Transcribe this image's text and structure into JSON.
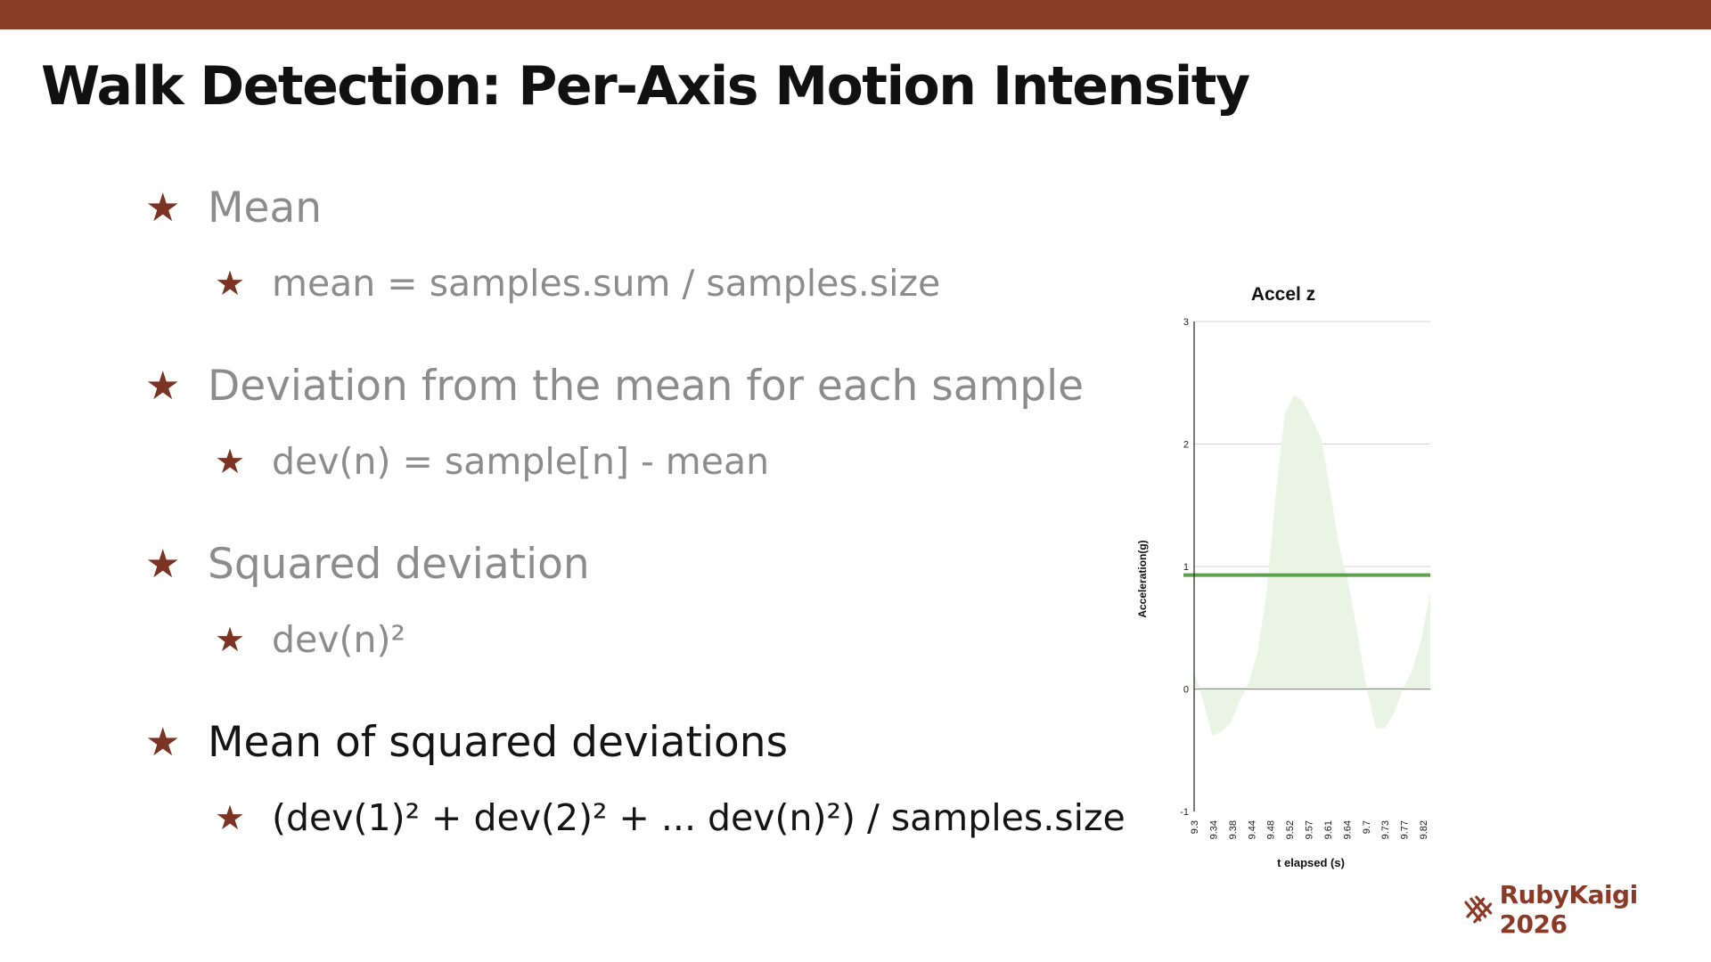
{
  "colors": {
    "top_bar": "#8b3a26",
    "star": "#7b3424",
    "text_dim": "#8c8c8c",
    "text_active": "#141414",
    "mean_line": "#5e9e4f",
    "area_fill": "#eaf4e5",
    "brand": "#8b3a26"
  },
  "slide": {
    "title": "Walk Detection: Per-Axis Motion Intensity",
    "bullets": [
      {
        "text": "Mean",
        "state": "dim",
        "sub": "mean = samples.sum / samples.size"
      },
      {
        "text": "Deviation from the mean for each sample",
        "state": "dim",
        "sub": "dev(n) = sample[n] - mean"
      },
      {
        "text": "Squared deviation",
        "state": "dim",
        "sub": "dev(n)²"
      },
      {
        "text": "Mean of squared deviations",
        "state": "active",
        "sub": "(dev(1)² + dev(2)² + ... dev(n)²) / samples.size"
      }
    ],
    "star_icon": "star-icon"
  },
  "chart_data": {
    "type": "area",
    "title": "Accel z",
    "xlabel": "t elapsed (s)",
    "ylabel": "Acceleration(g)",
    "ylim": [
      -1,
      3
    ],
    "yticks": [
      -1,
      0,
      1,
      2,
      3
    ],
    "x_tick_labels": [
      "9.3",
      "9.34",
      "9.38",
      "9.44",
      "9.48",
      "9.52",
      "9.57",
      "9.61",
      "9.64",
      "9.7",
      "9.73",
      "9.77",
      "9.82"
    ],
    "grid": true,
    "series": [
      {
        "values": [
          0.15,
          -0.1,
          -0.38,
          -0.35,
          -0.28,
          -0.1,
          0.05,
          0.3,
          0.8,
          1.6,
          2.25,
          2.4,
          2.35,
          2.2,
          2.05,
          1.6,
          1.15,
          0.85,
          0.45,
          0.0,
          -0.32,
          -0.32,
          -0.2,
          0.0,
          0.15,
          0.4,
          0.8
        ]
      }
    ],
    "mean_line": 0.93
  },
  "brand": {
    "logo_icon": "ruby-kaigi-logo-icon",
    "name": "RubyKaigi 2026"
  }
}
